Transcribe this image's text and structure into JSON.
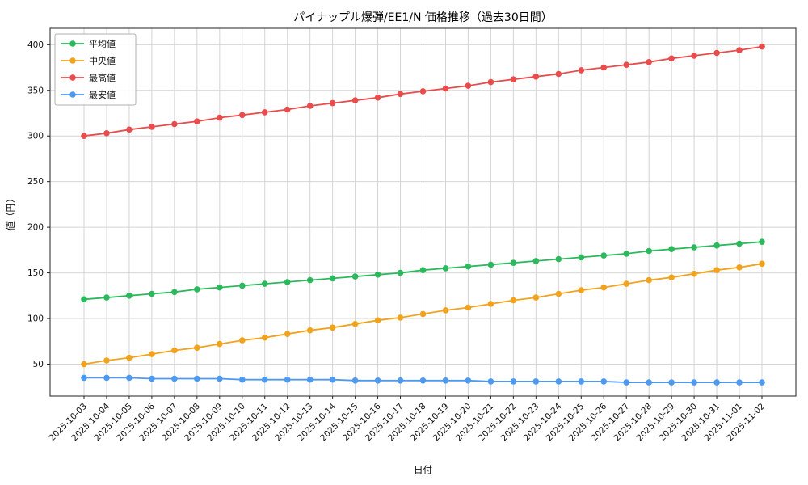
{
  "chart_data": {
    "type": "line",
    "title": "パイナップル爆弾/EE1/N 価格推移（過去30日間）",
    "xlabel": "日付",
    "ylabel": "値（円）",
    "grid": true,
    "legend_position": "upper left",
    "ylim": [
      15,
      418
    ],
    "yticks": [
      50,
      100,
      150,
      200,
      250,
      300,
      350,
      400
    ],
    "x": [
      "2025-10-03",
      "2025-10-04",
      "2025-10-05",
      "2025-10-06",
      "2025-10-07",
      "2025-10-08",
      "2025-10-09",
      "2025-10-10",
      "2025-10-11",
      "2025-10-12",
      "2025-10-13",
      "2025-10-14",
      "2025-10-15",
      "2025-10-16",
      "2025-10-17",
      "2025-10-18",
      "2025-10-19",
      "2025-10-20",
      "2025-10-21",
      "2025-10-22",
      "2025-10-23",
      "2025-10-24",
      "2025-10-25",
      "2025-10-26",
      "2025-10-27",
      "2025-10-28",
      "2025-10-29",
      "2025-10-30",
      "2025-10-31",
      "2025-11-01",
      "2025-11-02"
    ],
    "series": [
      {
        "key": "average",
        "name": "平均値",
        "color": "#2cb85c",
        "values": [
          121,
          123,
          125,
          127,
          129,
          132,
          134,
          136,
          138,
          140,
          142,
          144,
          146,
          148,
          150,
          153,
          155,
          157,
          159,
          161,
          163,
          165,
          167,
          169,
          171,
          174,
          176,
          178,
          180,
          182,
          184
        ]
      },
      {
        "key": "median",
        "name": "中央値",
        "color": "#f2a31d",
        "values": [
          50,
          54,
          57,
          61,
          65,
          68,
          72,
          76,
          79,
          83,
          87,
          90,
          94,
          98,
          101,
          105,
          109,
          112,
          116,
          120,
          123,
          127,
          131,
          134,
          138,
          142,
          145,
          149,
          153,
          156,
          160
        ]
      },
      {
        "key": "max",
        "name": "最高値",
        "color": "#e84c4c",
        "values": [
          300,
          303,
          307,
          310,
          313,
          316,
          320,
          323,
          326,
          329,
          333,
          336,
          339,
          342,
          346,
          349,
          352,
          355,
          359,
          362,
          365,
          368,
          372,
          375,
          378,
          381,
          385,
          388,
          391,
          394,
          398
        ]
      },
      {
        "key": "min",
        "name": "最安値",
        "color": "#4d9af0",
        "values": [
          35,
          35,
          35,
          34,
          34,
          34,
          34,
          33,
          33,
          33,
          33,
          33,
          32,
          32,
          32,
          32,
          32,
          32,
          31,
          31,
          31,
          31,
          31,
          31,
          30,
          30,
          30,
          30,
          30,
          30,
          30
        ]
      }
    ]
  }
}
